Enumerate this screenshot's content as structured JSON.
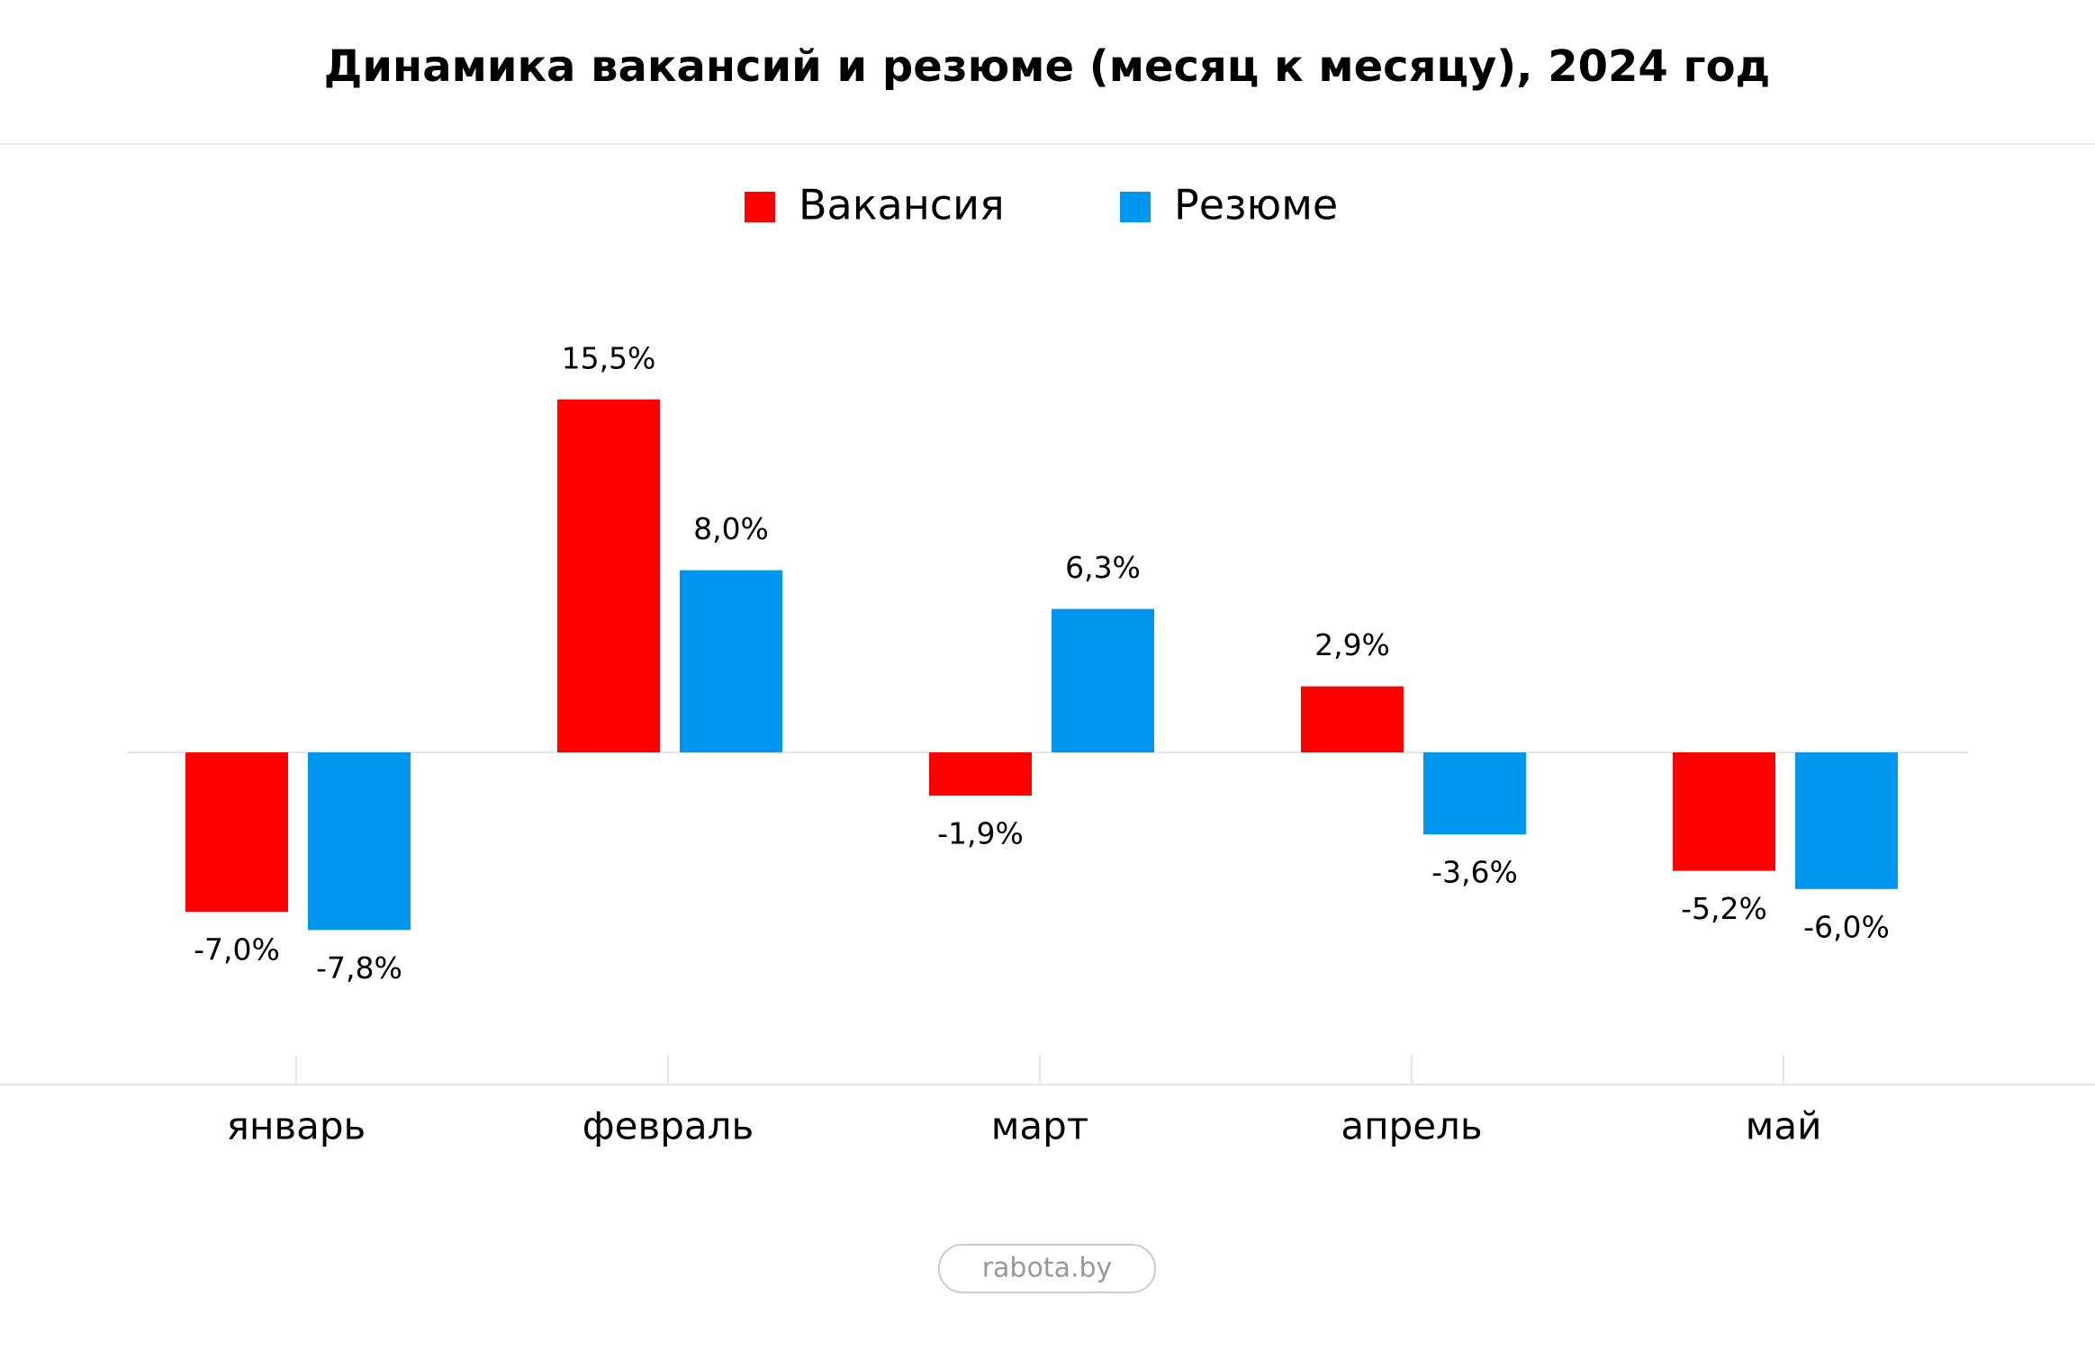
{
  "chart_data": {
    "type": "bar",
    "title": "Динамика вакансий и резюме (месяц к месяцу), 2024 год",
    "categories": [
      "январь",
      "февраль",
      "март",
      "апрель",
      "май"
    ],
    "series": [
      {
        "name": "Вакансия",
        "color": "#ff0000",
        "values": [
          -7.0,
          15.5,
          -1.9,
          2.9,
          -5.2
        ],
        "value_labels": [
          "-7,0%",
          "15,5%",
          "-1,9%",
          "2,9%",
          "-5,2%"
        ]
      },
      {
        "name": "Резюме",
        "color": "#0096ee",
        "values": [
          -7.8,
          8.0,
          6.3,
          -3.6,
          -6.0
        ],
        "value_labels": [
          "-7,8%",
          "8,0%",
          "6,3%",
          "-3,6%",
          "-6,0%"
        ]
      }
    ],
    "source": "rabota.by"
  }
}
